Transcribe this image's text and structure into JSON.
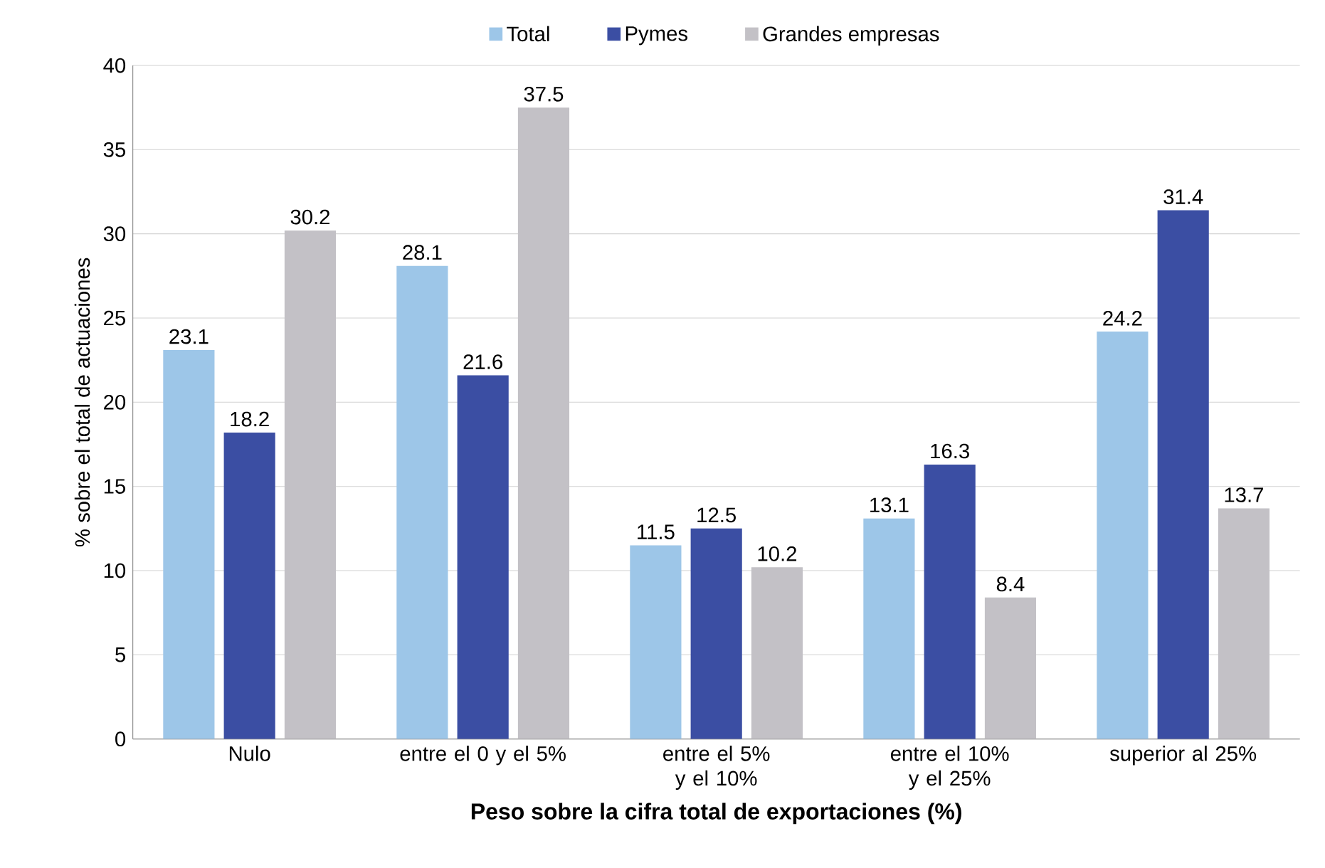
{
  "chart_data": {
    "type": "bar",
    "xlabel": "Peso sobre la cifra total de exportaciones (%)",
    "ylabel": "% sobre el total de actuaciones",
    "categories": [
      "Nulo",
      "entre el 0 y el 5%",
      "entre el 5% y el 10%",
      "entre el 10% y el 25%",
      "superior al 25%"
    ],
    "series": [
      {
        "name": "Total",
        "color": "#9dc6e8",
        "values": [
          23.1,
          28.1,
          11.5,
          13.1,
          24.2
        ]
      },
      {
        "name": "Pymes",
        "color": "#3b4ea3",
        "values": [
          18.2,
          21.6,
          12.5,
          16.3,
          31.4
        ]
      },
      {
        "name": "Grandes empresas",
        "color": "#c3c1c6",
        "values": [
          30.2,
          37.5,
          10.2,
          8.4,
          13.7
        ]
      }
    ],
    "ylim": [
      0,
      40
    ],
    "yticks": [
      0,
      5,
      10,
      15,
      20,
      25,
      30,
      35,
      40
    ],
    "grid": "y",
    "legend": "top",
    "data_labels": true
  }
}
